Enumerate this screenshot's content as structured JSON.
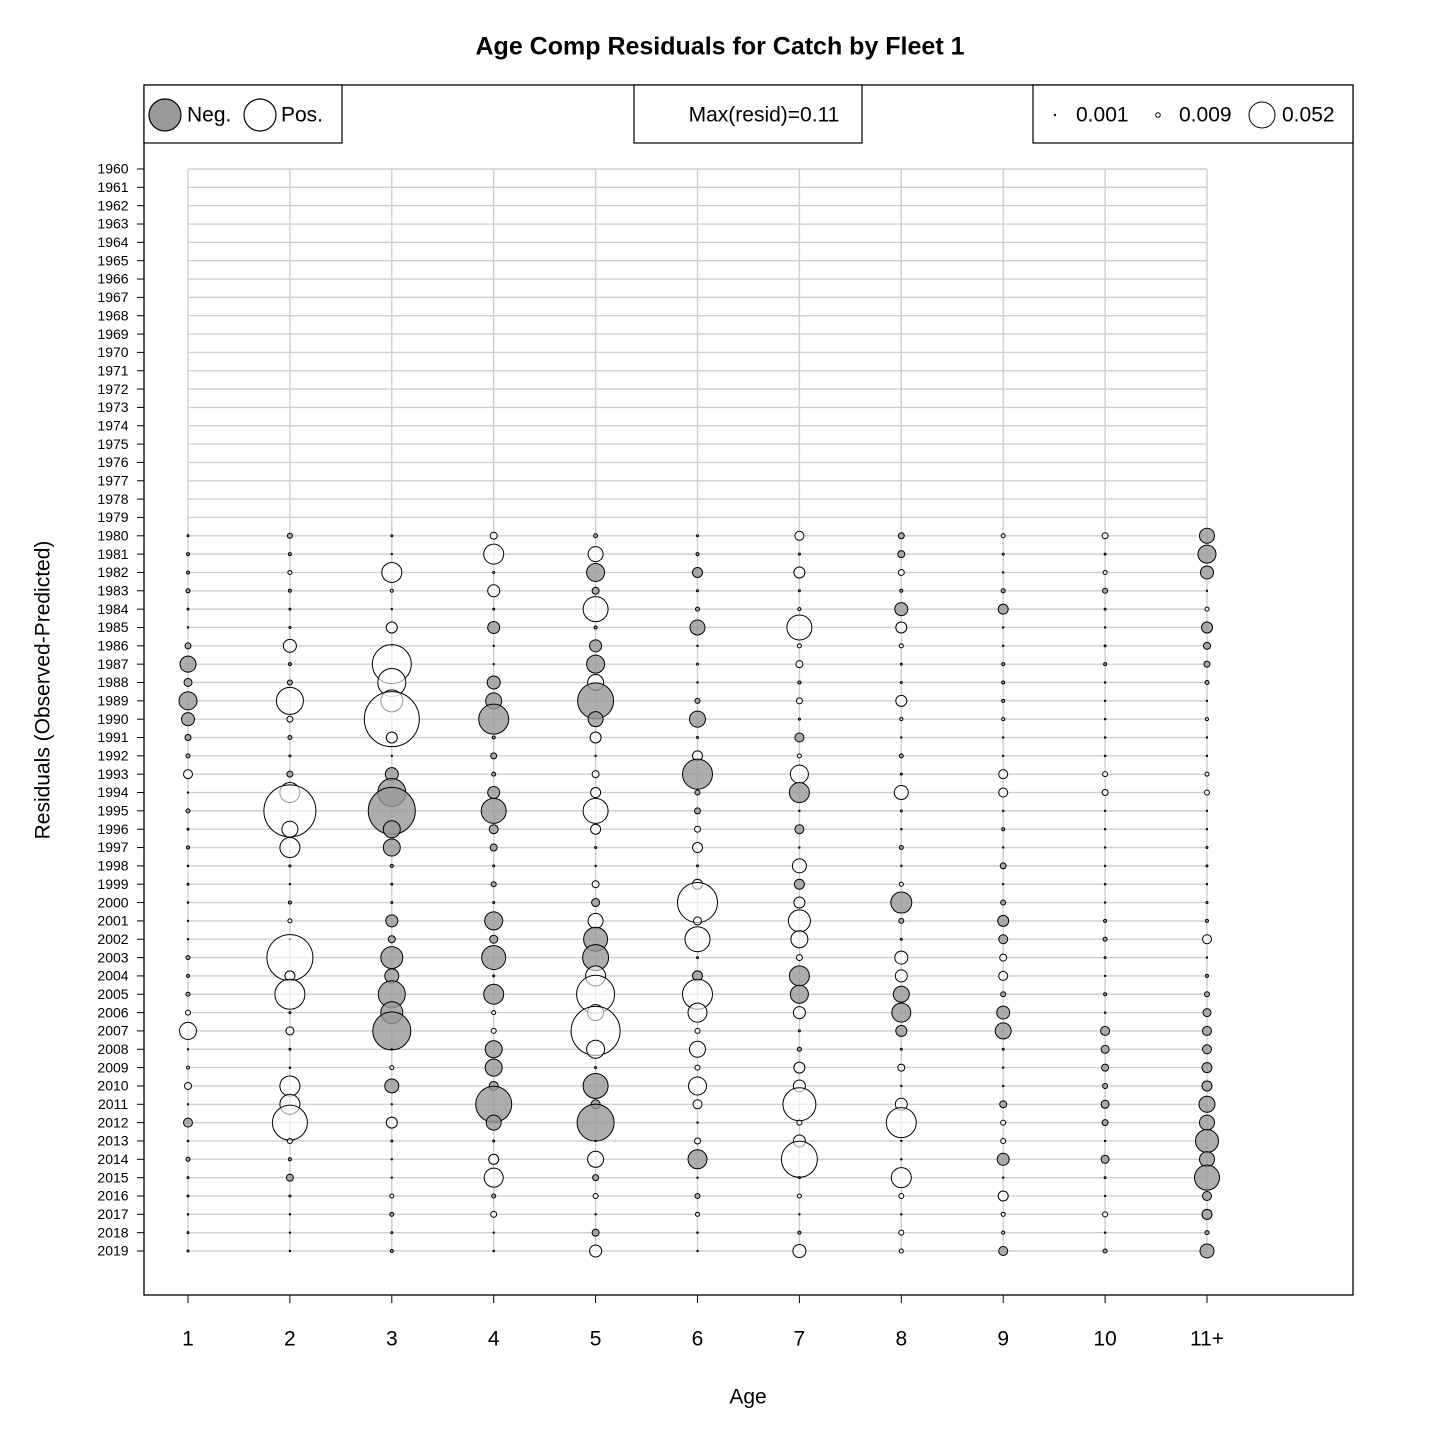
{
  "chart_data": {
    "type": "bubble",
    "title": "Age Comp Residuals for Catch by Fleet 1",
    "xlabel": "Age",
    "ylabel": "Residuals (Observed-Predicted)",
    "categories": [
      "1",
      "2",
      "3",
      "4",
      "5",
      "6",
      "7",
      "8",
      "9",
      "10",
      "11+"
    ],
    "years": [
      1960,
      1961,
      1962,
      1963,
      1964,
      1965,
      1966,
      1967,
      1968,
      1969,
      1970,
      1971,
      1972,
      1973,
      1974,
      1975,
      1976,
      1977,
      1978,
      1979,
      1980,
      1981,
      1982,
      1983,
      1984,
      1985,
      1986,
      1987,
      1988,
      1989,
      1990,
      1991,
      1992,
      1993,
      1994,
      1995,
      1996,
      1997,
      1998,
      1999,
      2000,
      2001,
      2002,
      2003,
      2004,
      2005,
      2006,
      2007,
      2008,
      2009,
      2010,
      2011,
      2012,
      2013,
      2014,
      2015,
      2016,
      2017,
      2018,
      2019
    ],
    "legend_sign": [
      "Neg.",
      "Pos."
    ],
    "max_label": "Max(resid)=0.11",
    "size_legend": [
      0.001,
      0.009,
      0.052
    ],
    "colors": {
      "negative": "#999999",
      "positive": "#ffffff"
    },
    "grid": true,
    "values": [
      [
        null,
        null,
        null,
        null,
        null,
        null,
        null,
        null,
        null,
        null,
        null,
        null,
        null,
        null,
        null,
        null,
        null,
        null,
        null,
        null,
        -0.004,
        -0.006,
        -0.006,
        -0.008,
        -0.004,
        0.002,
        -0.012,
        -0.032,
        -0.016,
        -0.036,
        -0.026,
        -0.012,
        -0.008,
        0.018,
        0.002,
        -0.008,
        -0.004,
        -0.006,
        -0.003,
        -0.004,
        -0.003,
        -0.002,
        -0.002,
        -0.008,
        -0.006,
        -0.008,
        0.01,
        0.034,
        -0.002,
        0.006,
        0.014,
        0.002,
        -0.018,
        -0.003,
        -0.008,
        -0.004,
        -0.004,
        -0.003,
        -0.004,
        -0.004
      ],
      [
        null,
        null,
        null,
        null,
        null,
        null,
        null,
        null,
        null,
        null,
        null,
        null,
        null,
        null,
        null,
        null,
        null,
        null,
        null,
        null,
        -0.01,
        -0.006,
        0.008,
        -0.006,
        -0.004,
        -0.004,
        0.026,
        -0.006,
        -0.01,
        0.054,
        0.012,
        -0.008,
        -0.004,
        -0.012,
        0.04,
        0.104,
        0.032,
        0.04,
        -0.004,
        0.002,
        -0.006,
        0.008,
        0.002,
        0.092,
        0.02,
        0.06,
        -0.004,
        0.016,
        -0.004,
        -0.003,
        0.04,
        0.04,
        0.07,
        0.01,
        -0.006,
        -0.014,
        -0.004,
        0.001,
        -0.002,
        -0.001
      ],
      [
        null,
        null,
        null,
        null,
        null,
        null,
        null,
        null,
        null,
        null,
        null,
        null,
        null,
        null,
        null,
        null,
        null,
        null,
        null,
        null,
        -0.004,
        0.001,
        0.04,
        0.006,
        -0.002,
        0.022,
        -0.002,
        0.078,
        0.056,
        0.044,
        0.11,
        0.022,
        0.002,
        -0.026,
        -0.056,
        -0.094,
        -0.034,
        -0.034,
        -0.006,
        -0.004,
        -0.004,
        -0.024,
        -0.014,
        -0.044,
        -0.028,
        -0.054,
        -0.044,
        -0.076,
        -0.002,
        0.008,
        -0.028,
        0.002,
        0.022,
        -0.004,
        -0.002,
        0.002,
        0.008,
        -0.008,
        -0.004,
        -0.006
      ],
      [
        null,
        null,
        null,
        null,
        null,
        null,
        null,
        null,
        null,
        null,
        null,
        null,
        null,
        null,
        null,
        null,
        null,
        null,
        null,
        null,
        0.014,
        0.04,
        -0.004,
        0.024,
        -0.004,
        -0.024,
        -0.002,
        -0.002,
        -0.026,
        -0.032,
        -0.06,
        -0.006,
        -0.012,
        -0.008,
        -0.024,
        -0.05,
        -0.018,
        -0.014,
        -0.004,
        -0.01,
        -0.004,
        -0.036,
        -0.016,
        -0.048,
        -0.004,
        -0.04,
        0.008,
        0.01,
        -0.034,
        -0.034,
        -0.018,
        -0.072,
        -0.03,
        -0.004,
        0.02,
        0.038,
        -0.008,
        0.012,
        -0.002,
        -0.003
      ],
      [
        null,
        null,
        null,
        null,
        null,
        null,
        null,
        null,
        null,
        null,
        null,
        null,
        null,
        null,
        null,
        null,
        null,
        null,
        null,
        null,
        -0.008,
        0.03,
        -0.036,
        -0.014,
        0.05,
        -0.006,
        -0.024,
        -0.036,
        0.032,
        -0.072,
        -0.03,
        0.022,
        -0.002,
        0.014,
        0.02,
        0.05,
        0.02,
        -0.004,
        -0.002,
        0.014,
        -0.016,
        0.03,
        -0.048,
        -0.052,
        0.04,
        0.076,
        0.032,
        0.098,
        0.036,
        -0.004,
        -0.05,
        -0.018,
        -0.074,
        -0.002,
        0.032,
        -0.012,
        0.01,
        -0.002,
        -0.014,
        0.024
      ],
      [
        null,
        null,
        null,
        null,
        null,
        null,
        null,
        null,
        null,
        null,
        null,
        null,
        null,
        null,
        null,
        null,
        null,
        null,
        null,
        null,
        -0.004,
        -0.006,
        -0.02,
        -0.004,
        -0.008,
        -0.03,
        -0.002,
        0.004,
        -0.002,
        -0.01,
        -0.032,
        -0.004,
        0.02,
        -0.06,
        -0.01,
        -0.012,
        0.012,
        0.02,
        -0.004,
        0.02,
        0.08,
        0.016,
        0.05,
        -0.004,
        -0.02,
        0.06,
        0.038,
        0.01,
        0.032,
        0.01,
        0.036,
        0.018,
        -0.002,
        0.012,
        -0.038,
        0.002,
        -0.01,
        0.008,
        -0.003,
        -0.002
      ],
      [
        null,
        null,
        null,
        null,
        null,
        null,
        null,
        null,
        null,
        null,
        null,
        null,
        null,
        null,
        null,
        null,
        null,
        null,
        null,
        null,
        0.018,
        -0.004,
        0.022,
        -0.004,
        0.006,
        0.05,
        0.008,
        0.014,
        -0.006,
        0.012,
        -0.004,
        -0.018,
        0.008,
        0.036,
        -0.04,
        -0.002,
        -0.018,
        -0.002,
        0.028,
        -0.02,
        0.022,
        0.044,
        0.034,
        0.012,
        -0.04,
        -0.036,
        0.024,
        -0.004,
        -0.008,
        0.022,
        0.024,
        0.066,
        0.01,
        0.024,
        0.072,
        -0.004,
        0.008,
        -0.002,
        -0.006,
        0.026
      ],
      [
        null,
        null,
        null,
        null,
        null,
        null,
        null,
        null,
        null,
        null,
        null,
        null,
        null,
        null,
        null,
        null,
        null,
        null,
        null,
        null,
        -0.012,
        -0.014,
        0.012,
        -0.006,
        -0.026,
        0.022,
        0.008,
        -0.004,
        -0.004,
        0.022,
        0.006,
        -0.002,
        -0.008,
        -0.004,
        0.028,
        0.004,
        -0.002,
        -0.008,
        -0.002,
        0.008,
        -0.042,
        -0.01,
        -0.004,
        0.026,
        0.024,
        -0.032,
        -0.038,
        -0.022,
        -0.004,
        0.014,
        -0.002,
        0.024,
        0.06,
        -0.002,
        -0.002,
        0.04,
        0.01,
        -0.002,
        0.01,
        0.008
      ],
      [
        null,
        null,
        null,
        null,
        null,
        null,
        null,
        null,
        null,
        null,
        null,
        null,
        null,
        null,
        null,
        null,
        null,
        null,
        null,
        null,
        0.008,
        -0.004,
        -0.002,
        -0.008,
        -0.02,
        -0.002,
        0.002,
        -0.006,
        -0.006,
        -0.006,
        0.006,
        -0.002,
        -0.002,
        0.018,
        0.018,
        0.002,
        -0.006,
        -0.002,
        -0.012,
        -0.002,
        -0.01,
        -0.022,
        -0.018,
        0.014,
        0.018,
        -0.01,
        -0.026,
        -0.032,
        -0.004,
        -0.002,
        0.001,
        -0.014,
        0.01,
        0.01,
        -0.024,
        -0.002,
        0.02,
        0.008,
        0.006,
        -0.018
      ],
      [
        null,
        null,
        null,
        null,
        null,
        null,
        null,
        null,
        null,
        null,
        null,
        null,
        null,
        null,
        null,
        null,
        null,
        null,
        null,
        null,
        0.012,
        -0.004,
        0.008,
        -0.01,
        -0.004,
        0.001,
        -0.004,
        -0.006,
        -0.002,
        -0.001,
        -0.003,
        -0.003,
        -0.003,
        0.01,
        0.012,
        0.001,
        -0.001,
        -0.001,
        0.001,
        -0.003,
        -0.002,
        -0.006,
        -0.008,
        -0.004,
        -0.002,
        -0.006,
        -0.003,
        -0.018,
        -0.016,
        -0.014,
        -0.01,
        -0.016,
        -0.012,
        -0.002,
        -0.016,
        -0.004,
        -0.002,
        0.01,
        -0.003,
        -0.008
      ],
      [
        null,
        null,
        null,
        null,
        null,
        null,
        null,
        null,
        null,
        null,
        null,
        null,
        null,
        null,
        null,
        null,
        null,
        null,
        null,
        null,
        -0.03,
        -0.036,
        -0.026,
        -0.002,
        0.008,
        -0.022,
        -0.014,
        -0.012,
        -0.008,
        -0.002,
        0.006,
        -0.002,
        -0.002,
        0.008,
        0.01,
        0.002,
        -0.002,
        -0.004,
        -0.004,
        -0.002,
        -0.004,
        -0.006,
        0.018,
        -0.002,
        -0.006,
        -0.01,
        -0.016,
        -0.018,
        -0.018,
        -0.02,
        -0.02,
        -0.032,
        -0.03,
        -0.046,
        -0.03,
        -0.05,
        -0.018,
        -0.02,
        -0.008,
        -0.028
      ]
    ]
  }
}
